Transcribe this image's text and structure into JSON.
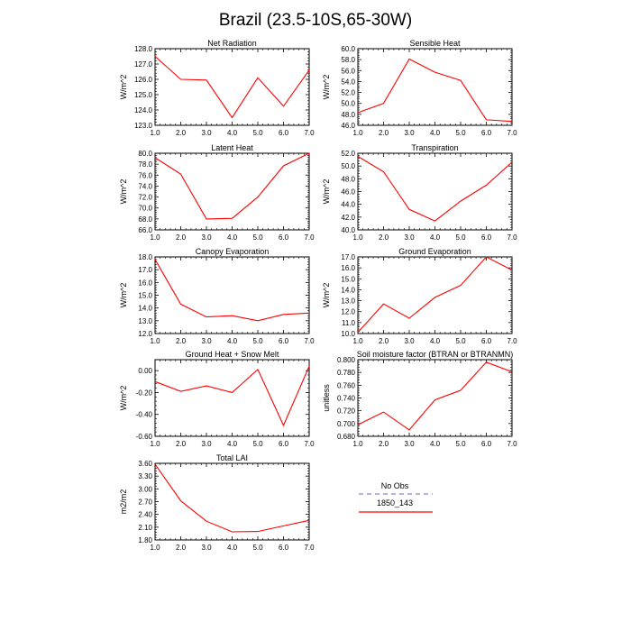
{
  "title": "Brazil (23.5-10S,65-30W)",
  "colors": {
    "model": "#ff0000",
    "obs": "#9999dd",
    "axis": "#000000"
  },
  "legend": {
    "obs_label": "No Obs",
    "model_label": "1850_143"
  },
  "chart_data": [
    {
      "type": "line",
      "title": "Net Radiation",
      "ylabel": "W/m^2",
      "x": [
        1,
        2,
        3,
        4,
        5,
        6,
        7
      ],
      "xlim": [
        1,
        7
      ],
      "xticks": [
        "1.0",
        "2.0",
        "3.0",
        "4.0",
        "5.0",
        "6.0",
        "7.0"
      ],
      "ylim": [
        123.0,
        128.0
      ],
      "yticks": [
        "123.0",
        "124.0",
        "125.0",
        "126.0",
        "127.0",
        "128.0"
      ],
      "series": [
        {
          "name": "1850_143",
          "values": [
            127.5,
            126.0,
            125.95,
            123.5,
            126.1,
            124.25,
            126.6
          ]
        }
      ]
    },
    {
      "type": "line",
      "title": "Sensible Heat",
      "ylabel": "W/m^2",
      "x": [
        1,
        2,
        3,
        4,
        5,
        6,
        7
      ],
      "xlim": [
        1,
        7
      ],
      "xticks": [
        "1.0",
        "2.0",
        "3.0",
        "4.0",
        "5.0",
        "6.0",
        "7.0"
      ],
      "ylim": [
        46.0,
        60.0
      ],
      "yticks": [
        "46.0",
        "48.0",
        "50.0",
        "52.0",
        "54.0",
        "56.0",
        "58.0",
        "60.0"
      ],
      "series": [
        {
          "name": "1850_143",
          "values": [
            48.3,
            50.0,
            58.1,
            55.7,
            54.2,
            47.0,
            46.7
          ]
        }
      ]
    },
    {
      "type": "line",
      "title": "Latent Heat",
      "ylabel": "W/m^2",
      "x": [
        1,
        2,
        3,
        4,
        5,
        6,
        7
      ],
      "xlim": [
        1,
        7
      ],
      "xticks": [
        "1.0",
        "2.0",
        "3.0",
        "4.0",
        "5.0",
        "6.0",
        "7.0"
      ],
      "ylim": [
        66.0,
        80.0
      ],
      "yticks": [
        "66.0",
        "68.0",
        "70.0",
        "72.0",
        "74.0",
        "76.0",
        "78.0",
        "80.0"
      ],
      "series": [
        {
          "name": "1850_143",
          "values": [
            79.2,
            76.2,
            68.0,
            68.1,
            72.0,
            77.7,
            80.0
          ]
        }
      ]
    },
    {
      "type": "line",
      "title": "Transpiration",
      "ylabel": "W/m^2",
      "x": [
        1,
        2,
        3,
        4,
        5,
        6,
        7
      ],
      "xlim": [
        1,
        7
      ],
      "xticks": [
        "1.0",
        "2.0",
        "3.0",
        "4.0",
        "5.0",
        "6.0",
        "7.0"
      ],
      "ylim": [
        40.0,
        52.0
      ],
      "yticks": [
        "40.0",
        "42.0",
        "44.0",
        "46.0",
        "48.0",
        "50.0",
        "52.0"
      ],
      "series": [
        {
          "name": "1850_143",
          "values": [
            51.5,
            49.1,
            43.2,
            41.4,
            44.5,
            47.0,
            50.6
          ]
        }
      ]
    },
    {
      "type": "line",
      "title": "Canopy Evaporation",
      "ylabel": "W/m^2",
      "x": [
        1,
        2,
        3,
        4,
        5,
        6,
        7
      ],
      "xlim": [
        1,
        7
      ],
      "xticks": [
        "1.0",
        "2.0",
        "3.0",
        "4.0",
        "5.0",
        "6.0",
        "7.0"
      ],
      "ylim": [
        12.0,
        18.0
      ],
      "yticks": [
        "12.0",
        "13.0",
        "14.0",
        "15.0",
        "16.0",
        "17.0",
        "18.0"
      ],
      "series": [
        {
          "name": "1850_143",
          "values": [
            17.8,
            14.3,
            13.3,
            13.4,
            13.0,
            13.5,
            13.6
          ]
        }
      ]
    },
    {
      "type": "line",
      "title": "Ground Evaporation",
      "ylabel": "W/m^2",
      "x": [
        1,
        2,
        3,
        4,
        5,
        6,
        7
      ],
      "xlim": [
        1,
        7
      ],
      "xticks": [
        "1.0",
        "2.0",
        "3.0",
        "4.0",
        "5.0",
        "6.0",
        "7.0"
      ],
      "ylim": [
        10.0,
        17.0
      ],
      "yticks": [
        "10.0",
        "11.0",
        "12.0",
        "13.0",
        "14.0",
        "15.0",
        "16.0",
        "17.0"
      ],
      "series": [
        {
          "name": "1850_143",
          "values": [
            10.1,
            12.7,
            11.4,
            13.3,
            14.4,
            17.0,
            15.8
          ]
        }
      ]
    },
    {
      "type": "line",
      "title": "Ground Heat + Snow Melt",
      "ylabel": "W/m^2",
      "x": [
        1,
        2,
        3,
        4,
        5,
        6,
        7
      ],
      "xlim": [
        1,
        7
      ],
      "xticks": [
        "1.0",
        "2.0",
        "3.0",
        "4.0",
        "5.0",
        "6.0",
        "7.0"
      ],
      "ylim": [
        -0.6,
        0.1
      ],
      "yticks": [
        "-0.60",
        "-0.40",
        "-0.20",
        "0.00"
      ],
      "ytick_values": [
        -0.6,
        -0.4,
        -0.2,
        0.0
      ],
      "series": [
        {
          "name": "1850_143",
          "values": [
            -0.1,
            -0.19,
            -0.14,
            -0.2,
            0.01,
            -0.5,
            0.04
          ]
        }
      ]
    },
    {
      "type": "line",
      "title": "Soil moisture factor (BTRAN or BTRANMN)",
      "ylabel": "unitless",
      "x": [
        1,
        2,
        3,
        4,
        5,
        6,
        7
      ],
      "xlim": [
        1,
        7
      ],
      "xticks": [
        "1.0",
        "2.0",
        "3.0",
        "4.0",
        "5.0",
        "6.0",
        "7.0"
      ],
      "ylim": [
        0.68,
        0.8
      ],
      "yticks": [
        "0.680",
        "0.700",
        "0.720",
        "0.740",
        "0.760",
        "0.780",
        "0.800"
      ],
      "series": [
        {
          "name": "1850_143",
          "values": [
            0.698,
            0.718,
            0.69,
            0.737,
            0.752,
            0.796,
            0.781
          ]
        }
      ]
    },
    {
      "type": "line",
      "title": "Total LAI",
      "ylabel": "m2/m2",
      "x": [
        1,
        2,
        3,
        4,
        5,
        6,
        7
      ],
      "xlim": [
        1,
        7
      ],
      "xticks": [
        "1.0",
        "2.0",
        "3.0",
        "4.0",
        "5.0",
        "6.0",
        "7.0"
      ],
      "ylim": [
        1.8,
        3.6
      ],
      "yticks": [
        "1.80",
        "2.10",
        "2.40",
        "2.70",
        "3.00",
        "3.30",
        "3.60"
      ],
      "series": [
        {
          "name": "1850_143",
          "values": [
            3.58,
            2.72,
            2.24,
            1.99,
            2.0,
            2.13,
            2.26
          ]
        }
      ]
    }
  ]
}
